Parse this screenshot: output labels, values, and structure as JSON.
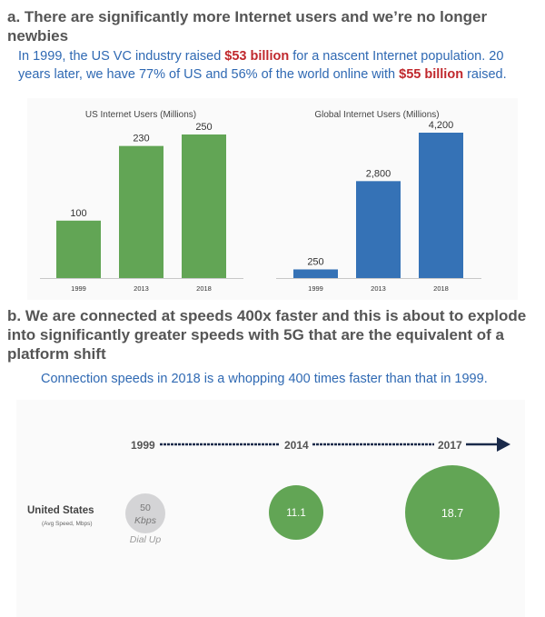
{
  "section_a": {
    "heading": "a. There are significantly more Internet users and we’re no longer newbies",
    "sub_pre": "In 1999, the US VC industry raised ",
    "sub_amt1": "$53 billion",
    "sub_mid": " for a nascent Internet population. 20 years later, we have 77% of US and 56% of the world online with ",
    "sub_amt2": "$55 billion",
    "sub_post": " raised."
  },
  "section_b": {
    "heading": "b. We are connected at speeds 400x faster and this is about to explode into significantly greater speeds with 5G that are the equivalent of a platform shift",
    "subtitle": "Connection speeds in 2018 is a whopping 400 times faster than that in 1999.",
    "row_label": "United States",
    "row_sublabel": "(Avg Speed, Mbps)",
    "timeline_years": [
      "1999",
      "2014",
      "2017"
    ],
    "speeds": [
      {
        "year": "1999",
        "value": "50",
        "unit": "Kbps",
        "note": "Dial Up"
      },
      {
        "year": "2014",
        "value": "11.1"
      },
      {
        "year": "2017",
        "value": "18.7"
      }
    ]
  },
  "colors": {
    "green": "#62a555",
    "blue": "#3572b6",
    "gray": "#d4d4d6",
    "navy": "#1a2a4a",
    "red": "#c0282d"
  },
  "chart_data": [
    {
      "type": "bar",
      "title": "US Internet Users (Millions)",
      "categories": [
        "1999",
        "2013",
        "2018"
      ],
      "values": [
        100,
        230,
        250
      ],
      "labels": [
        "100",
        "230",
        "250"
      ],
      "ylim": [
        0,
        250
      ],
      "color": "#62a555"
    },
    {
      "type": "bar",
      "title": "Global Internet Users (Millions)",
      "categories": [
        "1999",
        "2013",
        "2018"
      ],
      "values": [
        250,
        2800,
        4200
      ],
      "labels": [
        "250",
        "2,800",
        "4,200"
      ],
      "ylim": [
        0,
        4200
      ],
      "color": "#3572b6"
    }
  ]
}
